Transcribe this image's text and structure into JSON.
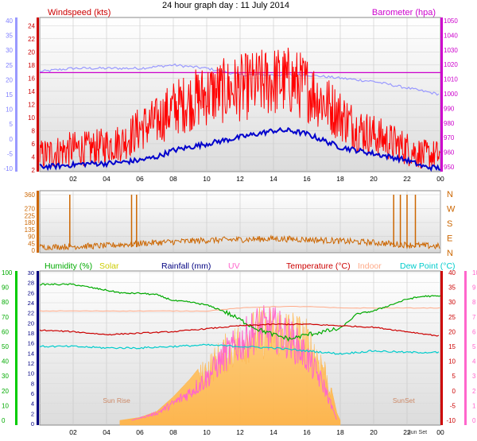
{
  "title": "24 hour graph day : 11 July 2014",
  "colors": {
    "windspeed": "#ff0000",
    "gust_avg": "#0000cc",
    "barometer": "#cc00cc",
    "baro_line": "#9999ff",
    "winddir": "#cc6600",
    "humidity": "#00aa00",
    "solar": "#ffcc44",
    "rainfall": "#000080",
    "uv": "#ff66cc",
    "temperature": "#cc0000",
    "indoor": "#ffaa88",
    "dewpoint": "#00cccc"
  },
  "chart_data": [
    {
      "type": "line",
      "title": "Windspeed / Barometer",
      "legend": [
        {
          "label": "Windspeed (kts)",
          "color": "#cc0000"
        },
        {
          "label": "Barometer (hpa)",
          "color": "#cc00cc"
        }
      ],
      "x_ticks": [
        "02",
        "04",
        "06",
        "08",
        "10",
        "12",
        "14",
        "16",
        "18",
        "20",
        "22",
        "00"
      ],
      "left_outer_ticks": [
        "40",
        "35",
        "30",
        "25",
        "20",
        "15",
        "10",
        "5",
        "0",
        "-5",
        "-10"
      ],
      "left_ticks": [
        "24",
        "22",
        "20",
        "18",
        "16",
        "14",
        "12",
        "10",
        "8",
        "6",
        "4",
        "2"
      ],
      "right_ticks": [
        "1050",
        "1040",
        "1030",
        "1020",
        "1010",
        "1000",
        "990",
        "980",
        "970",
        "960",
        "950"
      ],
      "ylim": [
        2,
        25
      ],
      "baro_ylim": [
        950,
        1050
      ],
      "series": [
        {
          "name": "Windspeed",
          "hours": [
            0,
            1,
            2,
            3,
            4,
            5,
            6,
            7,
            8,
            9,
            10,
            11,
            12,
            13,
            14,
            15,
            16,
            17,
            18,
            19,
            20,
            21,
            22,
            23,
            24
          ],
          "values": [
            4,
            4.5,
            5,
            5,
            5.5,
            6,
            8,
            9,
            11,
            12,
            13,
            13.5,
            14,
            14.5,
            15,
            15,
            14,
            12,
            10,
            8,
            7,
            6,
            5,
            4,
            4
          ]
        },
        {
          "name": "Average",
          "hours": [
            0,
            1,
            2,
            3,
            4,
            5,
            6,
            7,
            8,
            9,
            10,
            11,
            12,
            13,
            14,
            15,
            16,
            17,
            18,
            19,
            20,
            21,
            22,
            23,
            24
          ],
          "values": [
            2.5,
            2.6,
            2.8,
            3,
            3,
            3.2,
            3.5,
            4,
            5,
            5.5,
            6,
            6.5,
            7,
            7.5,
            8,
            8,
            7.5,
            6.5,
            5.5,
            5,
            4.5,
            4,
            3.5,
            2.5,
            2.3
          ]
        },
        {
          "name": "Barometer",
          "hours": [
            0,
            24
          ],
          "values": [
            1015,
            1015
          ]
        },
        {
          "name": "Wind Direction Trend",
          "hours": [
            0,
            2,
            4,
            6,
            8,
            10,
            12,
            14,
            16,
            18,
            20,
            22,
            24
          ],
          "values": [
            17,
            17.5,
            17.5,
            17.5,
            18,
            17.5,
            16.5,
            16.5,
            16.5,
            16,
            15.5,
            14.5,
            13.5
          ]
        }
      ]
    },
    {
      "type": "line",
      "title": "Wind Direction",
      "left_ticks": [
        "360",
        "270",
        "180",
        "90",
        "0"
      ],
      "right_labels": [
        "N",
        "W",
        "S",
        "E",
        "N"
      ],
      "x_ticks": [],
      "ylim": [
        0,
        360
      ],
      "series": [
        {
          "name": "Direction",
          "hours": [
            0,
            2,
            4,
            6,
            8,
            10,
            12,
            14,
            16,
            18,
            20,
            22,
            24
          ],
          "values": [
            20,
            25,
            30,
            45,
            55,
            65,
            70,
            75,
            70,
            60,
            50,
            35,
            25
          ]
        }
      ],
      "spikes_hours": [
        1.8,
        5.5,
        5.8,
        21.2,
        21.6,
        22.0,
        22.5
      ]
    },
    {
      "type": "area",
      "title": "Humidity / Rainfall / Temperature",
      "legend": [
        {
          "label": "Humidity (%)",
          "color": "#00aa00"
        },
        {
          "label": "Solar",
          "color": "#cccc00"
        },
        {
          "label": "Rainfall (mm)",
          "color": "#000080"
        },
        {
          "label": "UV",
          "color": "#ff66cc"
        },
        {
          "label": "Temperature (°C)",
          "color": "#cc0000"
        },
        {
          "label": "Indoor",
          "color": "#ffaa88"
        },
        {
          "label": "Dew Point (°C)",
          "color": "#00cccc"
        }
      ],
      "x_ticks": [
        "02",
        "04",
        "06",
        "08",
        "10",
        "12",
        "14",
        "16",
        "18",
        "20",
        "22",
        "00"
      ],
      "humidity_ticks": [
        "100",
        "90",
        "80",
        "70",
        "60",
        "50",
        "40",
        "30",
        "20",
        "10",
        "0"
      ],
      "rain_ticks": [
        "30",
        "28",
        "26",
        "24",
        "22",
        "20",
        "18",
        "16",
        "14",
        "12",
        "10",
        "8",
        "6",
        "4",
        "2",
        "0"
      ],
      "temp_ticks": [
        "40",
        "35",
        "30",
        "25",
        "20",
        "15",
        "10",
        "5",
        "0",
        "-5",
        "-10"
      ],
      "uv_ticks": [
        "10",
        "9",
        "8",
        "7",
        "6",
        "5",
        "4",
        "3",
        "2",
        "1",
        "0"
      ],
      "annotations": [
        "Sun Rise",
        "SunSet",
        "Sun Set"
      ],
      "humidity_ylim": [
        0,
        100
      ],
      "temp_ylim": [
        -10,
        40
      ],
      "series": [
        {
          "name": "Humidity",
          "hours": [
            0,
            1,
            2,
            3,
            4,
            5,
            6,
            7,
            8,
            9,
            10,
            11,
            12,
            13,
            14,
            15,
            16,
            17,
            18,
            19,
            20,
            21,
            22,
            23,
            24
          ],
          "values": [
            92,
            92,
            92,
            90,
            88,
            86,
            86,
            85,
            81,
            80,
            78,
            74,
            68,
            62,
            58,
            55,
            58,
            60,
            62,
            72,
            74,
            78,
            82,
            84,
            84
          ]
        },
        {
          "name": "Temperature",
          "hours": [
            0,
            2,
            4,
            6,
            8,
            10,
            12,
            14,
            16,
            18,
            20,
            22,
            24
          ],
          "values": [
            20.5,
            20,
            19,
            19.5,
            20,
            21,
            22,
            22.5,
            22.5,
            22,
            21.5,
            20,
            18.5
          ]
        },
        {
          "name": "Indoor",
          "hours": [
            0,
            2,
            4,
            6,
            8,
            10,
            12,
            14,
            16,
            18,
            20,
            22,
            24
          ],
          "values": [
            27,
            27,
            27,
            27,
            27,
            27,
            28,
            28.5,
            28.5,
            28,
            28,
            28,
            28
          ]
        },
        {
          "name": "Dew Point",
          "hours": [
            0,
            2,
            4,
            6,
            8,
            10,
            12,
            14,
            16,
            18,
            20,
            22,
            24
          ],
          "values": [
            15,
            15,
            14.5,
            14.5,
            15,
            15.5,
            15,
            14.5,
            13.5,
            12.5,
            13.5,
            13,
            13
          ]
        },
        {
          "name": "Solar",
          "hours": [
            4.8,
            6,
            7,
            8,
            9,
            10,
            11,
            12,
            13,
            14,
            15,
            16,
            17,
            17.8,
            18
          ],
          "values": [
            0,
            2,
            6,
            16,
            28,
            42,
            55,
            66,
            73,
            76,
            74,
            66,
            45,
            5,
            0
          ]
        },
        {
          "name": "UV",
          "hours": [
            5.5,
            7,
            8,
            9,
            10,
            11,
            12,
            13,
            14,
            15,
            16,
            17,
            17.8
          ],
          "values": [
            0,
            0.5,
            1.2,
            2,
            3,
            4.5,
            5.5,
            6.5,
            6.5,
            5.8,
            4.5,
            2.5,
            0
          ]
        }
      ]
    }
  ]
}
